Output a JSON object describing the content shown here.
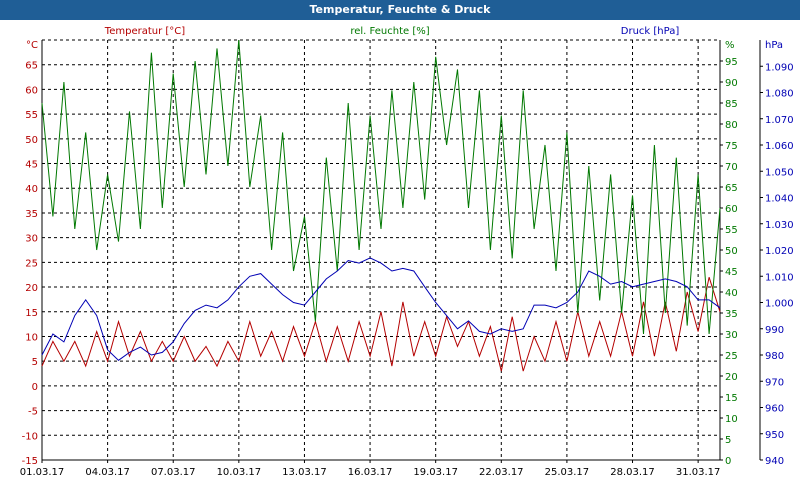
{
  "window": {
    "title": "Temperatur, Feuchte & Druck"
  },
  "chart_data": {
    "type": "line",
    "title": "Temperatur, Feuchte & Druck",
    "grid": true,
    "colors": {
      "temperature": "#b40000",
      "humidity": "#007800",
      "pressure": "#0000b4",
      "title_bar": "#1f5e96"
    },
    "axes": {
      "temperature": {
        "label": "Temperatur [°C]",
        "unit": "°C",
        "range": [
          -15,
          70
        ],
        "ticks": [
          -15,
          -10,
          -5,
          0,
          5,
          10,
          15,
          20,
          25,
          30,
          35,
          40,
          45,
          50,
          55,
          60,
          65
        ]
      },
      "humidity": {
        "label": "rel. Feuchte [%]",
        "unit": "%",
        "range": [
          0,
          100
        ],
        "ticks": [
          0,
          5,
          10,
          15,
          20,
          25,
          30,
          35,
          40,
          45,
          50,
          55,
          60,
          65,
          70,
          75,
          80,
          85,
          90,
          95
        ]
      },
      "pressure": {
        "label": "Druck [hPa]",
        "unit": "hPa",
        "range": [
          940,
          1100
        ],
        "ticks": [
          "940",
          "950",
          "960",
          "970",
          "980",
          "990",
          "1.000",
          "1.010",
          "1.020",
          "1.030",
          "1.040",
          "1.050",
          "1.060",
          "1.070",
          "1.080",
          "1.090"
        ]
      },
      "x": {
        "range": [
          "2017-03-01",
          "2017-04-01"
        ],
        "tick_dates": [
          "2017-03-01",
          "2017-03-04",
          "2017-03-07",
          "2017-03-10",
          "2017-03-13",
          "2017-03-16",
          "2017-03-19",
          "2017-03-22",
          "2017-03-25",
          "2017-03-28",
          "2017-03-31"
        ],
        "tick_labels": [
          "01.03.17",
          "04.03.17",
          "07.03.17",
          "10.03.17",
          "13.03.17",
          "16.03.17",
          "19.03.17",
          "22.03.17",
          "25.03.17",
          "28.03.17",
          "31.03.17"
        ]
      }
    },
    "series": [
      {
        "name": "Temperatur [°C]",
        "axis": "temperature",
        "x": [
          "2017-03-01 00:00",
          "2017-03-01 12:00",
          "2017-03-02 00:00",
          "2017-03-02 12:00",
          "2017-03-03 00:00",
          "2017-03-03 12:00",
          "2017-03-04 00:00",
          "2017-03-04 12:00",
          "2017-03-05 00:00",
          "2017-03-05 12:00",
          "2017-03-06 00:00",
          "2017-03-06 12:00",
          "2017-03-07 00:00",
          "2017-03-07 12:00",
          "2017-03-08 00:00",
          "2017-03-08 12:00",
          "2017-03-09 00:00",
          "2017-03-09 12:00",
          "2017-03-10 00:00",
          "2017-03-10 12:00",
          "2017-03-11 00:00",
          "2017-03-11 12:00",
          "2017-03-12 00:00",
          "2017-03-12 12:00",
          "2017-03-13 00:00",
          "2017-03-13 12:00",
          "2017-03-14 00:00",
          "2017-03-14 12:00",
          "2017-03-15 00:00",
          "2017-03-15 12:00",
          "2017-03-16 00:00",
          "2017-03-16 12:00",
          "2017-03-17 00:00",
          "2017-03-17 12:00",
          "2017-03-18 00:00",
          "2017-03-18 12:00",
          "2017-03-19 00:00",
          "2017-03-19 12:00",
          "2017-03-20 00:00",
          "2017-03-20 12:00",
          "2017-03-21 00:00",
          "2017-03-21 12:00",
          "2017-03-22 00:00",
          "2017-03-22 12:00",
          "2017-03-23 00:00",
          "2017-03-23 12:00",
          "2017-03-24 00:00",
          "2017-03-24 12:00",
          "2017-03-25 00:00",
          "2017-03-25 12:00",
          "2017-03-26 00:00",
          "2017-03-26 12:00",
          "2017-03-27 00:00",
          "2017-03-27 12:00",
          "2017-03-28 00:00",
          "2017-03-28 12:00",
          "2017-03-29 00:00",
          "2017-03-29 12:00",
          "2017-03-30 00:00",
          "2017-03-30 12:00",
          "2017-03-31 00:00",
          "2017-03-31 12:00",
          "2017-04-01 00:00"
        ],
        "values": [
          4,
          9,
          5,
          9,
          4,
          11,
          5,
          13,
          6,
          11,
          5,
          9,
          5,
          10,
          5,
          8,
          4,
          9,
          5,
          13,
          6,
          11,
          5,
          12,
          6,
          13,
          5,
          12,
          5,
          13,
          6,
          15,
          4,
          17,
          6,
          13,
          6,
          14,
          8,
          13,
          6,
          12,
          3,
          14,
          3,
          10,
          5,
          13,
          5,
          15,
          6,
          13,
          6,
          15,
          6,
          17,
          6,
          17,
          7,
          19,
          11,
          22,
          15
        ]
      },
      {
        "name": "rel. Feuchte [%]",
        "axis": "humidity",
        "x": [
          "2017-03-01 00:00",
          "2017-03-01 12:00",
          "2017-03-02 00:00",
          "2017-03-02 12:00",
          "2017-03-03 00:00",
          "2017-03-03 12:00",
          "2017-03-04 00:00",
          "2017-03-04 12:00",
          "2017-03-05 00:00",
          "2017-03-05 12:00",
          "2017-03-06 00:00",
          "2017-03-06 12:00",
          "2017-03-07 00:00",
          "2017-03-07 12:00",
          "2017-03-08 00:00",
          "2017-03-08 12:00",
          "2017-03-09 00:00",
          "2017-03-09 12:00",
          "2017-03-10 00:00",
          "2017-03-10 12:00",
          "2017-03-11 00:00",
          "2017-03-11 12:00",
          "2017-03-12 00:00",
          "2017-03-12 12:00",
          "2017-03-13 00:00",
          "2017-03-13 12:00",
          "2017-03-14 00:00",
          "2017-03-14 12:00",
          "2017-03-15 00:00",
          "2017-03-15 12:00",
          "2017-03-16 00:00",
          "2017-03-16 12:00",
          "2017-03-17 00:00",
          "2017-03-17 12:00",
          "2017-03-18 00:00",
          "2017-03-18 12:00",
          "2017-03-19 00:00",
          "2017-03-19 12:00",
          "2017-03-20 00:00",
          "2017-03-20 12:00",
          "2017-03-21 00:00",
          "2017-03-21 12:00",
          "2017-03-22 00:00",
          "2017-03-22 12:00",
          "2017-03-23 00:00",
          "2017-03-23 12:00",
          "2017-03-24 00:00",
          "2017-03-24 12:00",
          "2017-03-25 00:00",
          "2017-03-25 12:00",
          "2017-03-26 00:00",
          "2017-03-26 12:00",
          "2017-03-27 00:00",
          "2017-03-27 12:00",
          "2017-03-28 00:00",
          "2017-03-28 12:00",
          "2017-03-29 00:00",
          "2017-03-29 12:00",
          "2017-03-30 00:00",
          "2017-03-30 12:00",
          "2017-03-31 00:00",
          "2017-03-31 12:00",
          "2017-04-01 00:00"
        ],
        "values": [
          85,
          58,
          90,
          55,
          78,
          50,
          68,
          52,
          83,
          55,
          97,
          60,
          92,
          65,
          95,
          68,
          98,
          70,
          100,
          65,
          82,
          50,
          78,
          45,
          58,
          33,
          72,
          45,
          85,
          50,
          82,
          55,
          88,
          60,
          90,
          62,
          96,
          75,
          93,
          60,
          88,
          50,
          82,
          48,
          88,
          55,
          75,
          45,
          78,
          35,
          70,
          38,
          68,
          35,
          63,
          30,
          75,
          35,
          72,
          32,
          68,
          30,
          60
        ]
      },
      {
        "name": "Druck [hPa]",
        "axis": "pressure",
        "x": [
          "2017-03-01 00:00",
          "2017-03-01 12:00",
          "2017-03-02 00:00",
          "2017-03-02 12:00",
          "2017-03-03 00:00",
          "2017-03-03 12:00",
          "2017-03-04 00:00",
          "2017-03-04 12:00",
          "2017-03-05 00:00",
          "2017-03-05 12:00",
          "2017-03-06 00:00",
          "2017-03-06 12:00",
          "2017-03-07 00:00",
          "2017-03-07 12:00",
          "2017-03-08 00:00",
          "2017-03-08 12:00",
          "2017-03-09 00:00",
          "2017-03-09 12:00",
          "2017-03-10 00:00",
          "2017-03-10 12:00",
          "2017-03-11 00:00",
          "2017-03-11 12:00",
          "2017-03-12 00:00",
          "2017-03-12 12:00",
          "2017-03-13 00:00",
          "2017-03-13 12:00",
          "2017-03-14 00:00",
          "2017-03-14 12:00",
          "2017-03-15 00:00",
          "2017-03-15 12:00",
          "2017-03-16 00:00",
          "2017-03-16 12:00",
          "2017-03-17 00:00",
          "2017-03-17 12:00",
          "2017-03-18 00:00",
          "2017-03-18 12:00",
          "2017-03-19 00:00",
          "2017-03-19 12:00",
          "2017-03-20 00:00",
          "2017-03-20 12:00",
          "2017-03-21 00:00",
          "2017-03-21 12:00",
          "2017-03-22 00:00",
          "2017-03-22 12:00",
          "2017-03-23 00:00",
          "2017-03-23 12:00",
          "2017-03-24 00:00",
          "2017-03-24 12:00",
          "2017-03-25 00:00",
          "2017-03-25 12:00",
          "2017-03-26 00:00",
          "2017-03-26 12:00",
          "2017-03-27 00:00",
          "2017-03-27 12:00",
          "2017-03-28 00:00",
          "2017-03-28 12:00",
          "2017-03-29 00:00",
          "2017-03-29 12:00",
          "2017-03-30 00:00",
          "2017-03-30 12:00",
          "2017-03-31 00:00",
          "2017-03-31 12:00",
          "2017-04-01 00:00"
        ],
        "values": [
          980,
          988,
          985,
          995,
          1001,
          995,
          982,
          978,
          981,
          983,
          980,
          981,
          985,
          992,
          997,
          999,
          998,
          1001,
          1006,
          1010,
          1011,
          1007,
          1003,
          1000,
          999,
          1004,
          1009,
          1012,
          1016,
          1015,
          1017,
          1015,
          1012,
          1013,
          1012,
          1006,
          1000,
          995,
          990,
          993,
          989,
          988,
          990,
          989,
          990,
          999,
          999,
          998,
          1000,
          1004,
          1012,
          1010,
          1007,
          1008,
          1006,
          1007,
          1008,
          1009,
          1008,
          1006,
          1001,
          1001,
          998
        ]
      }
    ]
  }
}
